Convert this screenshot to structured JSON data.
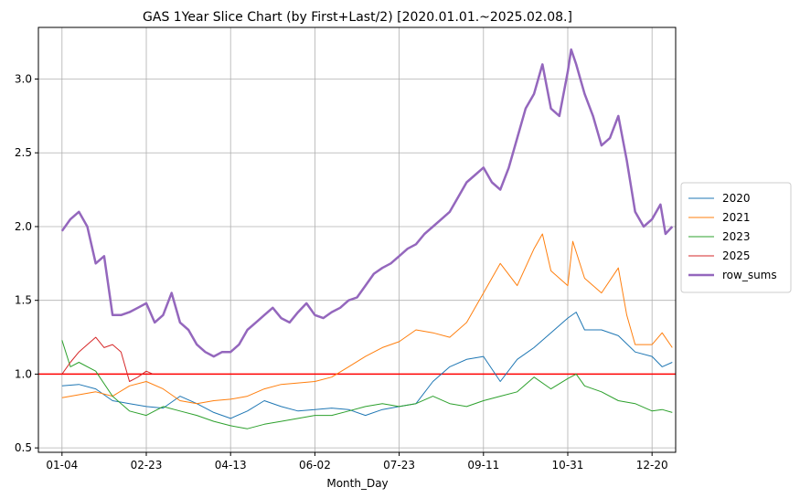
{
  "chart_data": {
    "type": "line",
    "title": "GAS 1Year Slice Chart (by First+Last/2) [2020.01.01.~2025.02.08.]",
    "xlabel": "Month_Day",
    "ylabel": "",
    "x_ticks": [
      "01-04",
      "02-23",
      "04-13",
      "06-02",
      "07-23",
      "09-11",
      "10-31",
      "12-20"
    ],
    "x_tick_index": [
      0,
      50,
      100,
      150,
      200,
      250,
      300,
      350
    ],
    "x_range": [
      -14,
      364
    ],
    "ylim": [
      0.47,
      3.35
    ],
    "y_ticks": [
      0.5,
      1.0,
      1.5,
      2.0,
      2.5,
      3.0
    ],
    "y_tick_labels": [
      "0.5",
      "1.0",
      "1.5",
      "2.0",
      "2.5",
      "3.0"
    ],
    "grid": true,
    "legend_position": "right",
    "reference_line": {
      "y": 1.0,
      "color": "#ff0000"
    },
    "series": [
      {
        "name": "2020",
        "color": "#1f77b4",
        "width": 1,
        "points": [
          [
            0,
            0.92
          ],
          [
            10,
            0.93
          ],
          [
            20,
            0.9
          ],
          [
            30,
            0.82
          ],
          [
            40,
            0.8
          ],
          [
            50,
            0.78
          ],
          [
            60,
            0.77
          ],
          [
            70,
            0.85
          ],
          [
            80,
            0.8
          ],
          [
            90,
            0.74
          ],
          [
            100,
            0.7
          ],
          [
            110,
            0.75
          ],
          [
            120,
            0.82
          ],
          [
            130,
            0.78
          ],
          [
            140,
            0.75
          ],
          [
            150,
            0.76
          ],
          [
            160,
            0.77
          ],
          [
            170,
            0.76
          ],
          [
            180,
            0.72
          ],
          [
            190,
            0.76
          ],
          [
            200,
            0.78
          ],
          [
            210,
            0.8
          ],
          [
            220,
            0.95
          ],
          [
            230,
            1.05
          ],
          [
            240,
            1.1
          ],
          [
            250,
            1.12
          ],
          [
            260,
            0.95
          ],
          [
            270,
            1.1
          ],
          [
            280,
            1.18
          ],
          [
            290,
            1.28
          ],
          [
            300,
            1.38
          ],
          [
            305,
            1.42
          ],
          [
            310,
            1.3
          ],
          [
            320,
            1.3
          ],
          [
            330,
            1.26
          ],
          [
            340,
            1.15
          ],
          [
            350,
            1.12
          ],
          [
            356,
            1.05
          ],
          [
            362,
            1.08
          ]
        ]
      },
      {
        "name": "2021",
        "color": "#ff7f0e",
        "width": 1,
        "points": [
          [
            0,
            0.84
          ],
          [
            10,
            0.86
          ],
          [
            20,
            0.88
          ],
          [
            30,
            0.85
          ],
          [
            40,
            0.92
          ],
          [
            50,
            0.95
          ],
          [
            60,
            0.9
          ],
          [
            70,
            0.82
          ],
          [
            80,
            0.8
          ],
          [
            90,
            0.82
          ],
          [
            100,
            0.83
          ],
          [
            110,
            0.85
          ],
          [
            120,
            0.9
          ],
          [
            130,
            0.93
          ],
          [
            140,
            0.94
          ],
          [
            150,
            0.95
          ],
          [
            160,
            0.98
          ],
          [
            170,
            1.05
          ],
          [
            180,
            1.12
          ],
          [
            190,
            1.18
          ],
          [
            200,
            1.22
          ],
          [
            210,
            1.3
          ],
          [
            220,
            1.28
          ],
          [
            230,
            1.25
          ],
          [
            240,
            1.35
          ],
          [
            250,
            1.55
          ],
          [
            260,
            1.75
          ],
          [
            270,
            1.6
          ],
          [
            280,
            1.85
          ],
          [
            285,
            1.95
          ],
          [
            290,
            1.7
          ],
          [
            300,
            1.6
          ],
          [
            303,
            1.9
          ],
          [
            310,
            1.65
          ],
          [
            320,
            1.55
          ],
          [
            330,
            1.72
          ],
          [
            335,
            1.4
          ],
          [
            340,
            1.2
          ],
          [
            350,
            1.2
          ],
          [
            356,
            1.28
          ],
          [
            362,
            1.18
          ]
        ]
      },
      {
        "name": "2023",
        "color": "#2ca02c",
        "width": 1,
        "points": [
          [
            0,
            1.23
          ],
          [
            5,
            1.05
          ],
          [
            10,
            1.08
          ],
          [
            20,
            1.02
          ],
          [
            30,
            0.85
          ],
          [
            40,
            0.75
          ],
          [
            50,
            0.72
          ],
          [
            60,
            0.78
          ],
          [
            70,
            0.75
          ],
          [
            80,
            0.72
          ],
          [
            90,
            0.68
          ],
          [
            100,
            0.65
          ],
          [
            110,
            0.63
          ],
          [
            120,
            0.66
          ],
          [
            130,
            0.68
          ],
          [
            140,
            0.7
          ],
          [
            150,
            0.72
          ],
          [
            160,
            0.72
          ],
          [
            170,
            0.75
          ],
          [
            180,
            0.78
          ],
          [
            190,
            0.8
          ],
          [
            200,
            0.78
          ],
          [
            210,
            0.8
          ],
          [
            220,
            0.85
          ],
          [
            230,
            0.8
          ],
          [
            240,
            0.78
          ],
          [
            250,
            0.82
          ],
          [
            260,
            0.85
          ],
          [
            270,
            0.88
          ],
          [
            280,
            0.98
          ],
          [
            290,
            0.9
          ],
          [
            300,
            0.97
          ],
          [
            305,
            1.0
          ],
          [
            310,
            0.92
          ],
          [
            320,
            0.88
          ],
          [
            330,
            0.82
          ],
          [
            340,
            0.8
          ],
          [
            350,
            0.75
          ],
          [
            356,
            0.76
          ],
          [
            362,
            0.74
          ]
        ]
      },
      {
        "name": "2025",
        "color": "#d62728",
        "width": 1,
        "points": [
          [
            0,
            1.0
          ],
          [
            5,
            1.08
          ],
          [
            10,
            1.15
          ],
          [
            15,
            1.2
          ],
          [
            20,
            1.25
          ],
          [
            25,
            1.18
          ],
          [
            30,
            1.2
          ],
          [
            35,
            1.15
          ],
          [
            40,
            0.95
          ],
          [
            45,
            0.98
          ],
          [
            50,
            1.02
          ],
          [
            54,
            1.0
          ]
        ]
      },
      {
        "name": "row_sums",
        "color": "#9467bd",
        "width": 2.5,
        "points": [
          [
            0,
            1.97
          ],
          [
            5,
            2.05
          ],
          [
            10,
            2.1
          ],
          [
            15,
            2.0
          ],
          [
            20,
            1.75
          ],
          [
            25,
            1.8
          ],
          [
            30,
            1.4
          ],
          [
            35,
            1.4
          ],
          [
            40,
            1.42
          ],
          [
            45,
            1.45
          ],
          [
            50,
            1.48
          ],
          [
            55,
            1.35
          ],
          [
            60,
            1.4
          ],
          [
            65,
            1.55
          ],
          [
            70,
            1.35
          ],
          [
            75,
            1.3
          ],
          [
            80,
            1.2
          ],
          [
            85,
            1.15
          ],
          [
            90,
            1.12
          ],
          [
            95,
            1.15
          ],
          [
            100,
            1.15
          ],
          [
            105,
            1.2
          ],
          [
            110,
            1.3
          ],
          [
            115,
            1.35
          ],
          [
            120,
            1.4
          ],
          [
            125,
            1.45
          ],
          [
            130,
            1.38
          ],
          [
            135,
            1.35
          ],
          [
            140,
            1.42
          ],
          [
            145,
            1.48
          ],
          [
            150,
            1.4
          ],
          [
            155,
            1.38
          ],
          [
            160,
            1.42
          ],
          [
            165,
            1.45
          ],
          [
            170,
            1.5
          ],
          [
            175,
            1.52
          ],
          [
            180,
            1.6
          ],
          [
            185,
            1.68
          ],
          [
            190,
            1.72
          ],
          [
            195,
            1.75
          ],
          [
            200,
            1.8
          ],
          [
            205,
            1.85
          ],
          [
            210,
            1.88
          ],
          [
            215,
            1.95
          ],
          [
            220,
            2.0
          ],
          [
            225,
            2.05
          ],
          [
            230,
            2.1
          ],
          [
            235,
            2.2
          ],
          [
            240,
            2.3
          ],
          [
            245,
            2.35
          ],
          [
            250,
            2.4
          ],
          [
            255,
            2.3
          ],
          [
            260,
            2.25
          ],
          [
            265,
            2.4
          ],
          [
            270,
            2.6
          ],
          [
            275,
            2.8
          ],
          [
            280,
            2.9
          ],
          [
            285,
            3.1
          ],
          [
            290,
            2.8
          ],
          [
            295,
            2.75
          ],
          [
            300,
            3.05
          ],
          [
            302,
            3.2
          ],
          [
            305,
            3.1
          ],
          [
            310,
            2.9
          ],
          [
            315,
            2.75
          ],
          [
            320,
            2.55
          ],
          [
            325,
            2.6
          ],
          [
            330,
            2.75
          ],
          [
            335,
            2.45
          ],
          [
            340,
            2.1
          ],
          [
            345,
            2.0
          ],
          [
            350,
            2.05
          ],
          [
            355,
            2.15
          ],
          [
            358,
            1.95
          ],
          [
            362,
            2.0
          ]
        ]
      }
    ]
  }
}
